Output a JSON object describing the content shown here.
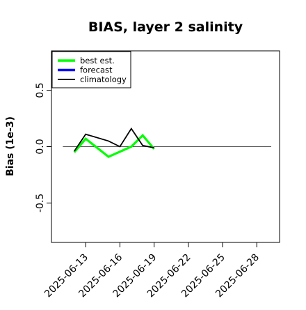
{
  "chart_data": {
    "type": "line",
    "title": "BIAS, layer 2 salinity",
    "xlabel": "",
    "ylabel": "Bias (1e-3)",
    "xlim": [
      "2025-06-10",
      "2025-06-30"
    ],
    "ylim": [
      -0.85,
      0.85
    ],
    "x_ticks": [
      "2025-06-13",
      "2025-06-16",
      "2025-06-19",
      "2025-06-22",
      "2025-06-25",
      "2025-06-28"
    ],
    "highlighted_tick": "2025-06-19",
    "highlight_color": "#228b22",
    "y_ticks": [
      -0.5,
      0.0,
      0.5
    ],
    "y_tick_labels": [
      "-0.5",
      "0.0",
      "0.5"
    ],
    "zero_line": 0,
    "legend_position": "top-left",
    "series": [
      {
        "name": "best est.",
        "color": "#00ff00",
        "x": [
          "2025-06-12",
          "2025-06-13",
          "2025-06-15",
          "2025-06-17",
          "2025-06-18",
          "2025-06-19"
        ],
        "values": [
          -0.05,
          0.07,
          -0.09,
          0.0,
          0.1,
          -0.02
        ]
      },
      {
        "name": "forecast",
        "color": "#0000ff",
        "x": [],
        "values": []
      },
      {
        "name": "climatology",
        "color": "#000000",
        "x": [
          "2025-06-12",
          "2025-06-13",
          "2025-06-15",
          "2025-06-16",
          "2025-06-17",
          "2025-06-18",
          "2025-06-19"
        ],
        "values": [
          -0.04,
          0.11,
          0.05,
          0.0,
          0.16,
          0.01,
          -0.01
        ]
      }
    ]
  }
}
